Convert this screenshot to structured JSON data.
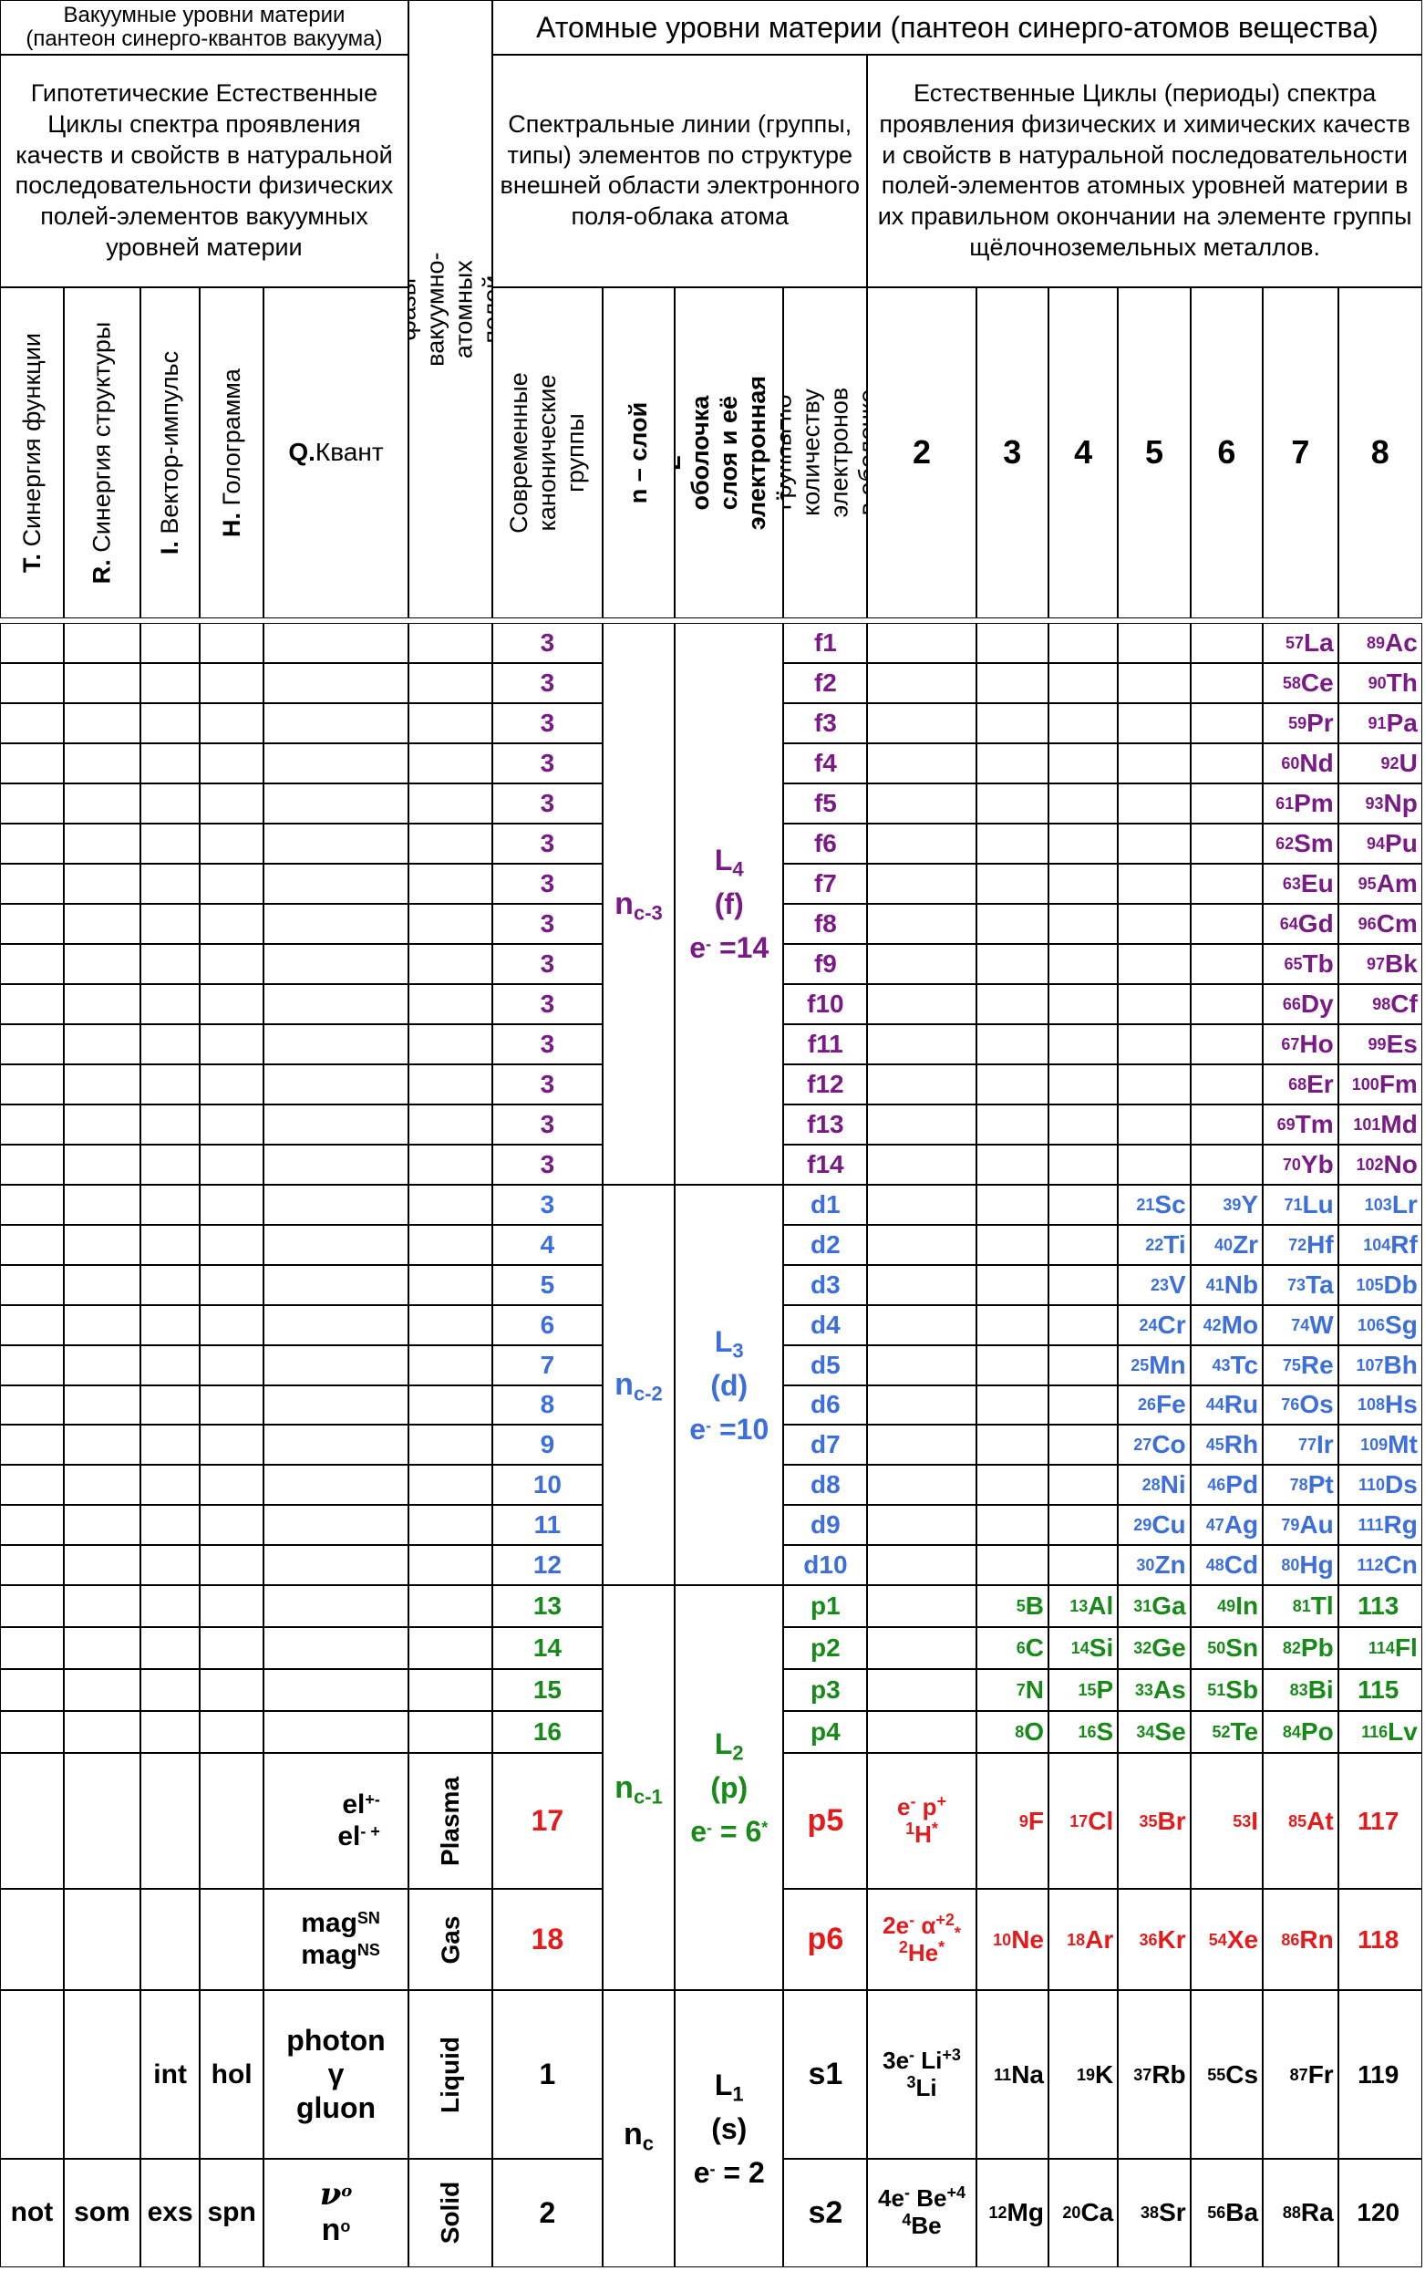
{
  "header": {
    "vacuum_title": "Вакуумные уровни материи\n(пантеон синерго-квантов вакуума)",
    "atomic_title": "Атомные уровни материи (пантеон синерго-атомов вещества)",
    "vacuum_cycles": "Гипотетические Естественные Циклы спектра проявления качеств и свойств в натуральной последовательности физических полей-элементов вакуумных уровней материи",
    "spectral_lines": "Спектральные линии (группы, типы) элементов по структуре внешней области электронного поля-облака атома",
    "natural_cycles": "Естественные Циклы (периоды) спектра проявления физических и химических качеств и свойств в натуральной последовательности полей-элементов атомных уровней материи в их правильном окончании на элементе группы щёлочноземельных металлов.",
    "aggregate_phases": "Агрегатные фазы вакуумно-атомных полей материи"
  },
  "columns": {
    "t": {
      "key": "T.",
      "label": "Синергия функции"
    },
    "r": {
      "key": "R.",
      "label": "Синергия структуры"
    },
    "i": {
      "key": "I.",
      "label": "Вектор-импульс"
    },
    "h": {
      "key": "H.",
      "label": "Голограмма"
    },
    "q": {
      "key": "Q.",
      "label": "Квант"
    },
    "canon": "Современные канонические группы",
    "n_layer": "n – слой",
    "l_shell": "L – оболочка слоя и её электронная ёмкость",
    "groups_count": "Группы по количеству электронов в оболочке",
    "periods": [
      "2",
      "3",
      "4",
      "5",
      "6",
      "7",
      "8"
    ]
  },
  "layers": [
    {
      "n": "n",
      "n_sub": "c-3",
      "l": "L",
      "l_sub": "4",
      "type": "(f)",
      "cap": "e",
      "cap_val": " =14",
      "color": "#7a1a86"
    },
    {
      "n": "n",
      "n_sub": "c-2",
      "l": "L",
      "l_sub": "3",
      "type": "(d)",
      "cap": "e",
      "cap_val": " =10",
      "color": "#3c6fdc"
    },
    {
      "n": "n",
      "n_sub": "c-1",
      "l": "L",
      "l_sub": "2",
      "type": "(p)",
      "cap": "e",
      "cap_val": " = 6",
      "color": "#178a1a"
    },
    {
      "n": "n",
      "n_sub": "c",
      "l": "L",
      "l_sub": "1",
      "type": "(s)",
      "cap": "e",
      "cap_val": " = 2",
      "color": "#000000"
    }
  ],
  "f_rows": [
    {
      "g": "3",
      "sub": "f1",
      "p7": [
        "57",
        "La"
      ],
      "p8": [
        "89",
        "Ac"
      ]
    },
    {
      "g": "3",
      "sub": "f2",
      "p7": [
        "58",
        "Ce"
      ],
      "p8": [
        "90",
        "Th"
      ]
    },
    {
      "g": "3",
      "sub": "f3",
      "p7": [
        "59",
        "Pr"
      ],
      "p8": [
        "91",
        "Pa"
      ]
    },
    {
      "g": "3",
      "sub": "f4",
      "p7": [
        "60",
        "Nd"
      ],
      "p8": [
        "92",
        "U"
      ]
    },
    {
      "g": "3",
      "sub": "f5",
      "p7": [
        "61",
        "Pm"
      ],
      "p8": [
        "93",
        "Np"
      ]
    },
    {
      "g": "3",
      "sub": "f6",
      "p7": [
        "62",
        "Sm"
      ],
      "p8": [
        "94",
        "Pu"
      ]
    },
    {
      "g": "3",
      "sub": "f7",
      "p7": [
        "63",
        "Eu"
      ],
      "p8": [
        "95",
        "Am"
      ]
    },
    {
      "g": "3",
      "sub": "f8",
      "p7": [
        "64",
        "Gd"
      ],
      "p8": [
        "96",
        "Cm"
      ]
    },
    {
      "g": "3",
      "sub": "f9",
      "p7": [
        "65",
        "Tb"
      ],
      "p8": [
        "97",
        "Bk"
      ]
    },
    {
      "g": "3",
      "sub": "f10",
      "p7": [
        "66",
        "Dy"
      ],
      "p8": [
        "98",
        "Cf"
      ]
    },
    {
      "g": "3",
      "sub": "f11",
      "p7": [
        "67",
        "Ho"
      ],
      "p8": [
        "99",
        "Es"
      ]
    },
    {
      "g": "3",
      "sub": "f12",
      "p7": [
        "68",
        "Er"
      ],
      "p8": [
        "100",
        "Fm"
      ]
    },
    {
      "g": "3",
      "sub": "f13",
      "p7": [
        "69",
        "Tm"
      ],
      "p8": [
        "101",
        "Md"
      ]
    },
    {
      "g": "3",
      "sub": "f14",
      "p7": [
        "70",
        "Yb"
      ],
      "p8": [
        "102",
        "No"
      ]
    }
  ],
  "d_rows": [
    {
      "g": "3",
      "sub": "d1",
      "p5": [
        "21",
        "Sc"
      ],
      "p6": [
        "39",
        "Y"
      ],
      "p7": [
        "71",
        "Lu"
      ],
      "p8": [
        "103",
        "Lr"
      ]
    },
    {
      "g": "4",
      "sub": "d2",
      "p5": [
        "22",
        "Ti"
      ],
      "p6": [
        "40",
        "Zr"
      ],
      "p7": [
        "72",
        "Hf"
      ],
      "p8": [
        "104",
        "Rf"
      ]
    },
    {
      "g": "5",
      "sub": "d3",
      "p5": [
        "23",
        "V"
      ],
      "p6": [
        "41",
        "Nb"
      ],
      "p7": [
        "73",
        "Ta"
      ],
      "p8": [
        "105",
        "Db"
      ]
    },
    {
      "g": "6",
      "sub": "d4",
      "p5": [
        "24",
        "Cr"
      ],
      "p6": [
        "42",
        "Mo"
      ],
      "p7": [
        "74",
        "W"
      ],
      "p8": [
        "106",
        "Sg"
      ]
    },
    {
      "g": "7",
      "sub": "d5",
      "p5": [
        "25",
        "Mn"
      ],
      "p6": [
        "43",
        "Tc"
      ],
      "p7": [
        "75",
        "Re"
      ],
      "p8": [
        "107",
        "Bh"
      ]
    },
    {
      "g": "8",
      "sub": "d6",
      "p5": [
        "26",
        "Fe"
      ],
      "p6": [
        "44",
        "Ru"
      ],
      "p7": [
        "76",
        "Os"
      ],
      "p8": [
        "108",
        "Hs"
      ]
    },
    {
      "g": "9",
      "sub": "d7",
      "p5": [
        "27",
        "Co"
      ],
      "p6": [
        "45",
        "Rh"
      ],
      "p7": [
        "77",
        "Ir"
      ],
      "p8": [
        "109",
        "Mt"
      ]
    },
    {
      "g": "10",
      "sub": "d8",
      "p5": [
        "28",
        "Ni"
      ],
      "p6": [
        "46",
        "Pd"
      ],
      "p7": [
        "78",
        "Pt"
      ],
      "p8": [
        "110",
        "Ds"
      ]
    },
    {
      "g": "11",
      "sub": "d9",
      "p5": [
        "29",
        "Cu"
      ],
      "p6": [
        "47",
        "Ag"
      ],
      "p7": [
        "79",
        "Au"
      ],
      "p8": [
        "111",
        "Rg"
      ]
    },
    {
      "g": "12",
      "sub": "d10",
      "p5": [
        "30",
        "Zn"
      ],
      "p6": [
        "48",
        "Cd"
      ],
      "p7": [
        "80",
        "Hg"
      ],
      "p8": [
        "112",
        "Cn"
      ]
    }
  ],
  "p_rows": [
    {
      "g": "13",
      "sub": "p1",
      "p3": [
        "5",
        "B"
      ],
      "p4": [
        "13",
        "Al"
      ],
      "p5": [
        "31",
        "Ga"
      ],
      "p6": [
        "49",
        "In"
      ],
      "p7": [
        "81",
        "Tl"
      ],
      "p8": [
        "",
        "113"
      ]
    },
    {
      "g": "14",
      "sub": "p2",
      "p3": [
        "6",
        "C"
      ],
      "p4": [
        "14",
        "Si"
      ],
      "p5": [
        "32",
        "Ge"
      ],
      "p6": [
        "50",
        "Sn"
      ],
      "p7": [
        "82",
        "Pb"
      ],
      "p8": [
        "114",
        "Fl"
      ]
    },
    {
      "g": "15",
      "sub": "p3",
      "p3": [
        "7",
        "N"
      ],
      "p4": [
        "15",
        "P"
      ],
      "p5": [
        "33",
        "As"
      ],
      "p6": [
        "51",
        "Sb"
      ],
      "p7": [
        "83",
        "Bi"
      ],
      "p8": [
        "",
        "115"
      ]
    },
    {
      "g": "16",
      "sub": "p4",
      "p3": [
        "8",
        "O"
      ],
      "p4": [
        "16",
        "S"
      ],
      "p5": [
        "34",
        "Se"
      ],
      "p6": [
        "52",
        "Te"
      ],
      "p7": [
        "84",
        "Po"
      ],
      "p8": [
        "116",
        "Lv"
      ]
    }
  ],
  "plasma_row": {
    "q": "el",
    "q_sup1": "+-",
    "q2": "el",
    "q_sup2": "- +",
    "phase": "Plasma",
    "g": "17",
    "sub": "p5",
    "p2": {
      "a": "e",
      "a_sup": "-",
      "b": "p",
      "b_sup": "+",
      "c_pre": "1",
      "c": "H",
      "c_sup": "*"
    },
    "p3": [
      "9",
      "F"
    ],
    "p4": [
      "17",
      "Cl"
    ],
    "p5": [
      "35",
      "Br"
    ],
    "p6": [
      "53",
      "I"
    ],
    "p7": [
      "85",
      "At"
    ],
    "p8": [
      "",
      "117"
    ]
  },
  "gas_row": {
    "q": "mag",
    "q_sup1": "SN",
    "q2": "mag",
    "q_sup2": "NS",
    "phase": "Gas",
    "g": "18",
    "sub": "p6",
    "p2": {
      "a": "2e",
      "a_sup": "-",
      "b": "α",
      "b_sup": "+2",
      "b_sub": "*",
      "c_pre": "2",
      "c": "He",
      "c_sup": "*"
    },
    "p3": [
      "10",
      "Ne"
    ],
    "p4": [
      "18",
      "Ar"
    ],
    "p5": [
      "36",
      "Kr"
    ],
    "p6": [
      "54",
      "Xe"
    ],
    "p7": [
      "86",
      "Rn"
    ],
    "p8": [
      "",
      "118"
    ]
  },
  "liquid_row": {
    "i": "int",
    "h": "hol",
    "q1": "photon",
    "q2": "γ",
    "q3": "gluon",
    "phase": "Liquid",
    "g": "1",
    "sub": "s1",
    "p2": {
      "a": "3e",
      "a_sup": "-",
      "b": "Li",
      "b_sup": "+3",
      "c_pre": "3",
      "c": "Li"
    },
    "p3": [
      "11",
      "Na"
    ],
    "p4": [
      "19",
      "K"
    ],
    "p5": [
      "37",
      "Rb"
    ],
    "p6": [
      "55",
      "Cs"
    ],
    "p7": [
      "87",
      "Fr"
    ],
    "p8": [
      "",
      "119"
    ]
  },
  "solid_row": {
    "t": "not",
    "r": "som",
    "i": "exs",
    "h": "spn",
    "q1": "ν",
    "q1_sup": "o",
    "q2": "n",
    "q2_sup": "o",
    "phase": "Solid",
    "g": "2",
    "sub": "s2",
    "p2": {
      "a": "4e",
      "a_sup": "-",
      "b": "Be",
      "b_sup": "+4",
      "c_pre": "4",
      "c": "Be"
    },
    "p3": [
      "12",
      "Mg"
    ],
    "p4": [
      "20",
      "Ca"
    ],
    "p5": [
      "38",
      "Sr"
    ],
    "p6": [
      "56",
      "Ba"
    ],
    "p7": [
      "88",
      "Ra"
    ],
    "p8": [
      "",
      "120"
    ]
  }
}
